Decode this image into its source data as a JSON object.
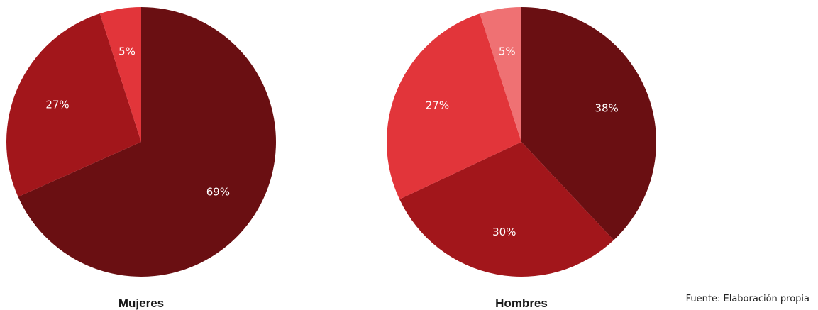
{
  "chart_data": [
    {
      "type": "pie",
      "title": "Mujeres",
      "slices": [
        {
          "label": "69%",
          "value": 69,
          "color": "#6a0f12"
        },
        {
          "label": "27%",
          "value": 27,
          "color": "#a2161b"
        },
        {
          "label": "5%",
          "value": 5,
          "color": "#e2353a"
        }
      ],
      "start": "12 o'clock",
      "direction": "clockwise"
    },
    {
      "type": "pie",
      "title": "Hombres",
      "slices": [
        {
          "label": "38%",
          "value": 38,
          "color": "#6a0f12"
        },
        {
          "label": "30%",
          "value": 30,
          "color": "#a2161b"
        },
        {
          "label": "27%",
          "value": 27,
          "color": "#e2353a"
        },
        {
          "label": "5%",
          "value": 5,
          "color": "#ef7173"
        }
      ],
      "start": "12 o'clock",
      "direction": "clockwise"
    }
  ],
  "source": "Fuente: Elaboración propia"
}
